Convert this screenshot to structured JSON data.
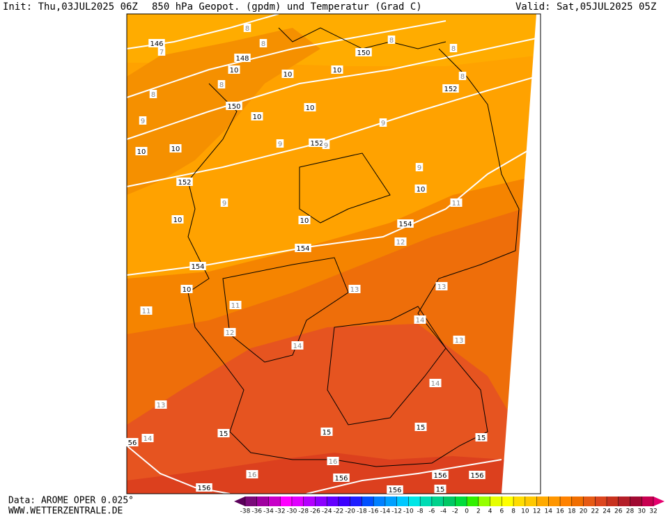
{
  "header": {
    "init": "Init: Thu,03JUL2025 06Z",
    "title": "850 hPa Geopot. (gpdm) und Temperatur (Grad C)",
    "valid": "Valid: Sat,05JUL2025 05Z"
  },
  "footer": {
    "source": "Data: AROME OPER 0.025°",
    "website": "WWW.WETTERZENTRALE.DE"
  },
  "map": {
    "geopotential_labels": [
      146,
      148,
      10,
      10,
      10,
      150,
      152,
      150,
      10,
      10,
      152,
      10,
      10,
      152,
      10,
      10,
      10,
      154,
      154,
      154,
      10,
      15,
      15,
      15,
      15,
      56,
      156,
      156,
      156,
      156,
      156,
      15
    ],
    "isotherm_labels": [
      8,
      8,
      7,
      8,
      8,
      8,
      8,
      8,
      9,
      9,
      9,
      9,
      9,
      9,
      11,
      12,
      13,
      13,
      11,
      11,
      14,
      12,
      13,
      14,
      14,
      13,
      14,
      16,
      16
    ]
  },
  "colorbar": {
    "labels": [
      -38,
      -36,
      -34,
      -32,
      -30,
      -28,
      -26,
      -24,
      -22,
      -20,
      -18,
      -16,
      -14,
      -12,
      -10,
      -8,
      -6,
      -4,
      -2,
      0,
      2,
      4,
      6,
      8,
      10,
      12,
      14,
      16,
      18,
      20,
      22,
      24,
      26,
      28,
      30,
      32
    ],
    "colors": [
      "#5a005a",
      "#7a0a7a",
      "#a000a0",
      "#c800c8",
      "#ff00ff",
      "#e000ff",
      "#b400ff",
      "#8c00ff",
      "#6400ff",
      "#3c00ff",
      "#1e1eff",
      "#0050ff",
      "#0080ff",
      "#00a0ff",
      "#00c8ff",
      "#00e6e6",
      "#00dcb4",
      "#00d28c",
      "#00c864",
      "#00dc3c",
      "#32f000",
      "#96ff00",
      "#e6ff00",
      "#ffff00",
      "#ffdc00",
      "#ffc800",
      "#ffaa00",
      "#ff9600",
      "#ff8200",
      "#f06e00",
      "#e65a14",
      "#dc461e",
      "#c8321e",
      "#b41e28",
      "#a00a32",
      "#c80050",
      "#e6006e"
    ]
  }
}
